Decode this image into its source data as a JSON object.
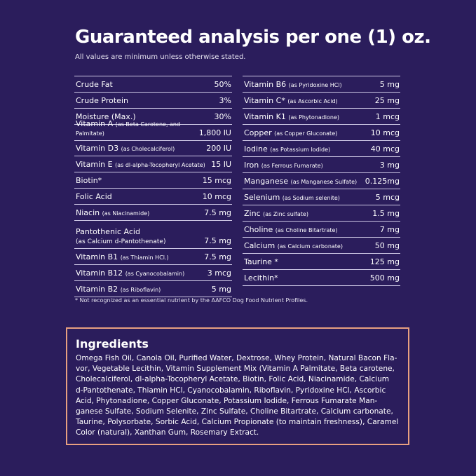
{
  "title": "Guaranteed analysis per one (1) oz.",
  "subtitle": "All values are minimum unless otherwise stated.",
  "left_table": [
    {
      "name": "Crude Fat",
      "note": "",
      "value": "50%"
    },
    {
      "name": "Crude Protein",
      "note": "",
      "value": "3%"
    },
    {
      "name": "Moisture (Max.)",
      "note": "",
      "value": "30%"
    },
    {
      "name": "Vitamin A",
      "note": "(as Beta Carotene, and Palmitate)",
      "value": "1,800 IU"
    },
    {
      "name": "Vitamin D3",
      "note": "(as Cholecalciferol)",
      "value": "200 IU"
    },
    {
      "name": "Vitamin E",
      "note": "(as dl-alpha-Tocopheryl Acetate)",
      "value": "15 IU"
    },
    {
      "name": "Biotin*",
      "note": "",
      "value": "15 mcg"
    },
    {
      "name": "Folic Acid",
      "note": "",
      "value": "10 mcg"
    },
    {
      "name": "Niacin",
      "note": "(as Niacinamide)",
      "value": "7.5 mg"
    },
    {
      "name": "Pantothenic Acid",
      "note": "(as Calcium d-Pantothenate)",
      "value": "7.5 mg",
      "tall": true
    },
    {
      "name": "Vitamin B1",
      "note": "(as Thiamin HCl.)",
      "value": "7.5 mg"
    },
    {
      "name": "Vitamin B12",
      "note": "(as Cyanocobalamin)",
      "value": "3 mcg"
    },
    {
      "name": "Vitamin B2",
      "note": "(as Riboflavin)",
      "value": "5 mg"
    }
  ],
  "right_table": [
    {
      "name": "Vitamin B6",
      "note": "(as Pyridoxine HCl)",
      "value": "5 mg"
    },
    {
      "name": "Vitamin C*",
      "note": "(as Ascorbic Acid)",
      "value": "25 mg"
    },
    {
      "name": "Vitamin K1",
      "note": "(as Phytonadione)",
      "value": "1 mcg"
    },
    {
      "name": "Copper",
      "note": "(as Copper Gluconate)",
      "value": "10 mcg"
    },
    {
      "name": "Iodine",
      "note": "(as Potassium Iodide)",
      "value": "40 mcg"
    },
    {
      "name": "Iron",
      "note": "(as Ferrous Fumarate)",
      "value": "3 mg"
    },
    {
      "name": "Manganese",
      "note": "(as Manganese Sulfate)",
      "value": "0.125mg"
    },
    {
      "name": "Selenium",
      "note": "(as Sodium selenite)",
      "value": "5 mcg"
    },
    {
      "name": "Zinc",
      "note": "(as Zinc sulfate)",
      "value": "1.5 mg"
    },
    {
      "name": "Choline",
      "note": "(as Choline Bitartrate)",
      "value": "7 mg"
    },
    {
      "name": "Calcium",
      "note": "(as Calcium carbonate)",
      "value": "50 mg"
    },
    {
      "name": "Taurine *",
      "note": "",
      "value": "125 mg"
    },
    {
      "name": "Lecithin*",
      "note": "",
      "value": "500 mg"
    }
  ],
  "footnote": "* Not recognized as an essential nutrient by the AAFCO Dog Food Nutrient Profiles.",
  "ingredients": {
    "heading": "Ingredients",
    "lines": [
      "Omega Fish Oil, Canola Oil, Purified Water, Dextrose, Whey Protein, Natural Bacon Fla-",
      "vor, Vegetable Lecithin, Vitamin Supplement Mix (Vitamin A Palmitate, Beta carotene,",
      "Cholecalciferol, dl-alpha-Tocopheryl Acetate, Biotin, Folic Acid, Niacinamide, Calcium",
      "d-Pantothenate, Thiamin HCl, Cyanocobalamin, Riboflavin, Pyridoxine HCl, Ascorbic",
      "Acid, Phytonadione, Copper Gluconate, Potassium Iodide, Ferrous Fumarate Man-",
      "ganese Sulfate, Sodium Selenite, Zinc Sulfate, Choline Bitartrate, Calcium carbonate,",
      "Taurine, Polysorbate, Sorbic Acid, Calcium Propionate (to maintain freshness), Caramel",
      "Color (natural), Xanthan Gum, Rosemary Extract."
    ]
  },
  "colors": {
    "background": "#2b1d5c",
    "border": "#e8a080",
    "text": "#ffffff"
  }
}
